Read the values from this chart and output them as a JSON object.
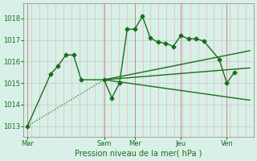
{
  "background_color": "#d8f0e8",
  "grid_color_h": "#b8d8c8",
  "grid_color_v": "#e8b8b8",
  "line_color": "#1a6e1a",
  "ylim": [
    1012.5,
    1018.7
  ],
  "yticks": [
    1013,
    1014,
    1015,
    1016,
    1017,
    1018
  ],
  "xlabel": "Pression niveau de la mer( hPa )",
  "day_labels": [
    "Mar",
    "Sam",
    "Mer",
    "Jeu",
    "Ven"
  ],
  "day_positions": [
    0,
    10,
    14,
    20,
    26
  ],
  "xlim": [
    -0.5,
    29.5
  ],
  "series_main": {
    "x": [
      0,
      3,
      4,
      5,
      6,
      7,
      10,
      11,
      12,
      13,
      14,
      15,
      16,
      17,
      18,
      19,
      20,
      21,
      22,
      23,
      25,
      26,
      27
    ],
    "y": [
      1013.0,
      1015.4,
      1015.8,
      1016.3,
      1016.3,
      1015.15,
      1015.15,
      1014.3,
      1015.0,
      1017.5,
      1017.5,
      1018.1,
      1017.1,
      1016.9,
      1016.85,
      1016.7,
      1017.2,
      1017.05,
      1017.05,
      1016.95,
      1016.1,
      1015.0,
      1015.5
    ],
    "linestyle": "-",
    "marker": "D",
    "markersize": 2.5,
    "linewidth": 1.0
  },
  "series_dotted": {
    "x": [
      0,
      10
    ],
    "y": [
      1013.0,
      1015.15
    ],
    "linestyle": ":",
    "linewidth": 0.9
  },
  "straight_lines": [
    {
      "x": [
        10,
        29
      ],
      "y": [
        1015.15,
        1014.2
      ],
      "linestyle": "-",
      "linewidth": 1.0
    },
    {
      "x": [
        10,
        29
      ],
      "y": [
        1015.15,
        1016.5
      ],
      "linestyle": "-",
      "linewidth": 1.0
    },
    {
      "x": [
        10,
        29
      ],
      "y": [
        1015.15,
        1015.7
      ],
      "linestyle": "-",
      "linewidth": 1.0
    }
  ],
  "vline_color": "#cc8888",
  "vline_positions": [
    0,
    10,
    14,
    20,
    26
  ],
  "tick_fontsize": 6,
  "xlabel_fontsize": 7,
  "label_color": "#1a6e1a"
}
